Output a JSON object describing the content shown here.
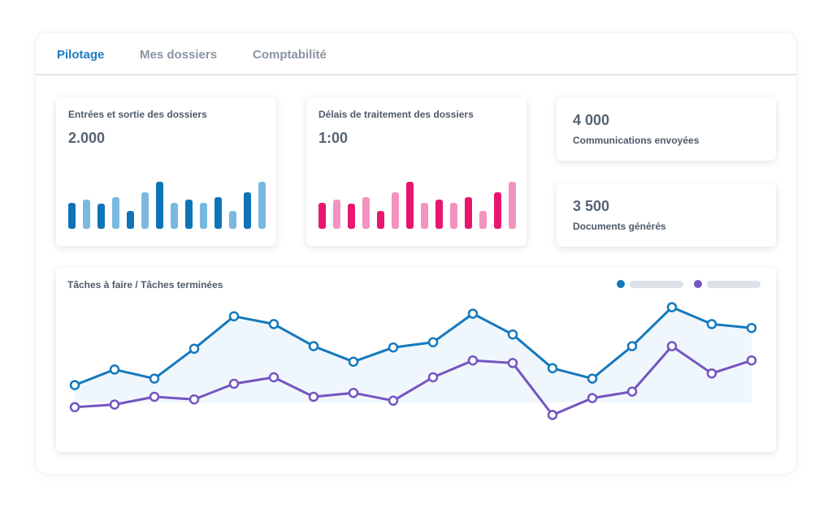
{
  "tabs": [
    {
      "label": "Pilotage",
      "active": true
    },
    {
      "label": "Mes dossiers",
      "active": false
    },
    {
      "label": "Comptabilité",
      "active": false
    }
  ],
  "cards": {
    "entries": {
      "title": "Entrées et sortie des dossiers",
      "value": "2.000",
      "colors": {
        "dark": "#0f74b6",
        "light": "#79b9e0"
      }
    },
    "delays": {
      "title": "Délais de traitement des dossiers",
      "value": "1:00",
      "colors": {
        "dark": "#e8176e",
        "light": "#f393bf"
      }
    }
  },
  "stats": {
    "communications": {
      "value": "4 000",
      "label": "Communications envoyées"
    },
    "documents": {
      "value": "3 500",
      "label": "Documents générés"
    }
  },
  "chart_data": [
    {
      "type": "bar",
      "title": "Entrées et sortie des dossiers",
      "values": [
        0.55,
        0.62,
        0.53,
        0.68,
        0.38,
        0.77,
        1.0,
        0.55,
        0.62,
        0.55,
        0.68,
        0.38,
        0.77,
        1.0
      ],
      "shades": [
        "dark",
        "light",
        "dark",
        "light",
        "dark",
        "light",
        "dark",
        "light",
        "dark",
        "light",
        "dark",
        "light",
        "dark",
        "light"
      ]
    },
    {
      "type": "bar",
      "title": "Délais de traitement des dossiers",
      "values": [
        0.55,
        0.62,
        0.53,
        0.68,
        0.38,
        0.77,
        1.0,
        0.55,
        0.62,
        0.55,
        0.68,
        0.38,
        0.77,
        1.0
      ],
      "shades": [
        "dark",
        "light",
        "dark",
        "light",
        "dark",
        "light",
        "dark",
        "light",
        "dark",
        "light",
        "dark",
        "light",
        "dark",
        "light"
      ]
    },
    {
      "type": "line",
      "title": "Tâches à faire / Tâches terminées",
      "ylim": [
        0,
        100
      ],
      "x": [
        1,
        2,
        3,
        4,
        5,
        6,
        7,
        8,
        9,
        10,
        11,
        12,
        13,
        14,
        15,
        16,
        17,
        18
      ],
      "series": [
        {
          "color": "#1579bd",
          "values": [
            39,
            51,
            44,
            67,
            92,
            86,
            69,
            57,
            68,
            72,
            94,
            78,
            52,
            44,
            69,
            99,
            86,
            83
          ]
        },
        {
          "color": "#7455c2",
          "values": [
            22,
            24,
            30,
            28,
            40,
            45,
            30,
            33,
            27,
            45,
            58,
            56,
            16,
            29,
            34,
            69,
            48,
            58
          ]
        }
      ]
    }
  ]
}
